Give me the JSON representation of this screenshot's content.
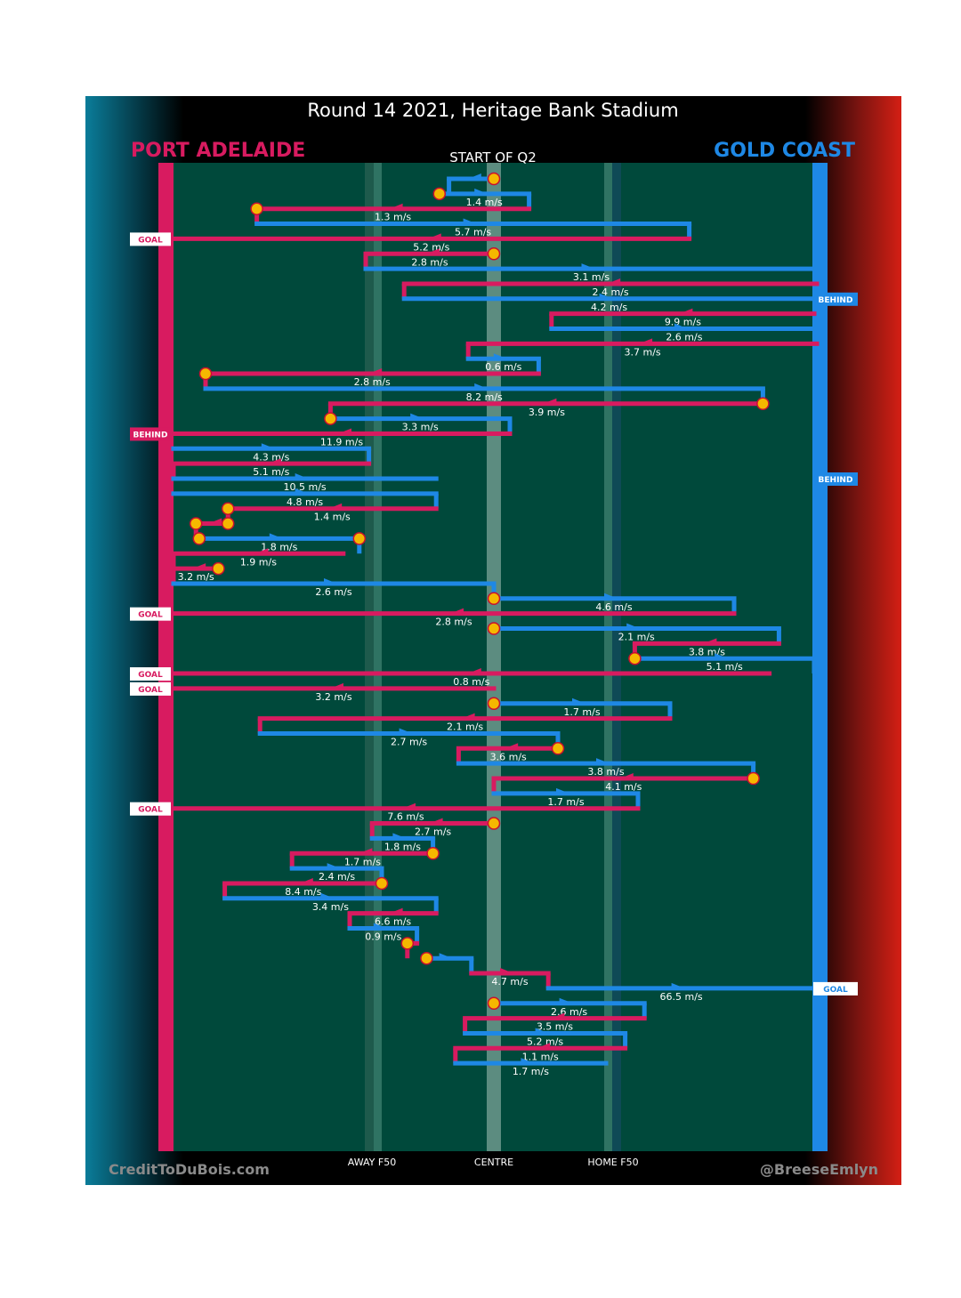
{
  "title": "Round 14 2021, Heritage Bank Stadium",
  "subtitle": "START OF Q2",
  "teams": {
    "left": {
      "name": "PORT ADELAIDE",
      "color": "#d81b60"
    },
    "right": {
      "name": "GOLD COAST",
      "color": "#1e88e5"
    }
  },
  "axis_labels": {
    "away": "AWAY F50",
    "centre": "CENTRE",
    "home": "HOME F50"
  },
  "credits": {
    "left": "CreditToDuBois.com",
    "right": "@BreeseEmlyn"
  },
  "colors": {
    "field": "#00493b",
    "port": "#d81b60",
    "gc": "#1e88e5",
    "stoppage": "#f5b800",
    "left_gradient": "#007a99",
    "right_gradient": "#d41f14",
    "background_band": "#000000"
  },
  "chart_data": {
    "type": "line",
    "title": "Round 14 2021, Heritage Bank Stadium",
    "subtitle": "START OF Q2",
    "x_axis": {
      "description": "field position",
      "min": -1,
      "max": 1,
      "ticks": [
        {
          "value": -0.5,
          "label": "AWAY F50"
        },
        {
          "value": 0,
          "label": "CENTRE"
        },
        {
          "value": 0.5,
          "label": "HOME F50"
        }
      ]
    },
    "y_axis": {
      "description": "chain sequence (time, top to bottom)"
    },
    "legend": "top",
    "series": [
      {
        "name": "PORT ADELAIDE",
        "color": "#d81b60"
      },
      {
        "name": "GOLD COAST",
        "color": "#1e88e5"
      }
    ],
    "chains": [
      {
        "team": "gc",
        "x1": 0.0,
        "x2": -0.14,
        "speed": "",
        "stoppage": "start"
      },
      {
        "team": "gc",
        "x1": -0.17,
        "x2": 0.11,
        "speed": "1.4 m/s",
        "stoppage": "start"
      },
      {
        "team": "port",
        "x1": 0.11,
        "x2": -0.74,
        "speed": "1.3 m/s",
        "stoppage": "end"
      },
      {
        "team": "gc",
        "x1": -0.74,
        "x2": 0.61,
        "speed": "5.7 m/s"
      },
      {
        "team": "port",
        "x1": 0.61,
        "x2": -1.0,
        "speed": "5.2 m/s",
        "result": "GOAL"
      },
      {
        "team": "port",
        "x1": 0.0,
        "x2": -0.4,
        "speed": "2.8 m/s",
        "stoppage": "start"
      },
      {
        "team": "gc",
        "x1": -0.4,
        "x2": 1.03,
        "speed": "3.1 m/s"
      },
      {
        "team": "port",
        "x1": 1.03,
        "x2": -0.28,
        "speed": "2.4 m/s"
      },
      {
        "team": "gc",
        "x1": -0.28,
        "x2": 1.0,
        "speed": "4.2 m/s",
        "result": "BEHIND"
      },
      {
        "team": "port",
        "x1": 1.0,
        "x2": 0.18,
        "speed": "9.9 m/s"
      },
      {
        "team": "gc",
        "x1": 0.18,
        "x2": 1.03,
        "speed": "2.6 m/s"
      },
      {
        "team": "port",
        "x1": 1.03,
        "x2": -0.08,
        "speed": "3.7 m/s"
      },
      {
        "team": "gc",
        "x1": -0.08,
        "x2": 0.14,
        "speed": "0.6 m/s"
      },
      {
        "team": "port",
        "x1": 0.14,
        "x2": -0.9,
        "speed": "2.8 m/s",
        "stoppage": "end"
      },
      {
        "team": "gc",
        "x1": -0.9,
        "x2": 0.84,
        "speed": "8.2 m/s"
      },
      {
        "team": "port",
        "x1": 0.84,
        "x2": -0.51,
        "speed": "3.9 m/s",
        "stoppage": "start"
      },
      {
        "team": "gc",
        "x1": -0.51,
        "x2": 0.05,
        "speed": "3.3 m/s",
        "stoppage": "start"
      },
      {
        "team": "port",
        "x1": 0.05,
        "x2": -1.0,
        "speed": "11.9 m/s",
        "result": "BEHIND"
      },
      {
        "team": "gc",
        "x1": -1.0,
        "x2": -0.39,
        "speed": "4.3 m/s"
      },
      {
        "team": "port",
        "x1": -0.39,
        "x2": -1.0,
        "speed": "5.1 m/s"
      },
      {
        "team": "gc",
        "x1": -1.0,
        "x2": -0.18,
        "speed": "10.5 m/s",
        "result": "BEHIND"
      },
      {
        "team": "gc",
        "x1": -1.0,
        "x2": -0.18,
        "speed": "4.8 m/s"
      },
      {
        "team": "port",
        "x1": -0.18,
        "x2": -0.83,
        "speed": "1.4 m/s",
        "stoppage": "end"
      },
      {
        "team": "port",
        "x1": -0.83,
        "x2": -0.93,
        "speed": "",
        "stoppage": "both"
      },
      {
        "team": "gc",
        "x1": -0.92,
        "x2": -0.42,
        "speed": "1.8 m/s",
        "stoppage": "both"
      },
      {
        "team": "port",
        "x1": -0.47,
        "x2": -1.0,
        "speed": "1.9 m/s"
      },
      {
        "team": "port",
        "x1": -0.86,
        "x2": -1.0,
        "speed": "3.2 m/s",
        "stoppage": "start"
      },
      {
        "team": "gc",
        "x1": -1.0,
        "x2": 0.0,
        "speed": "2.6 m/s"
      },
      {
        "team": "gc",
        "x1": 0.0,
        "x2": 0.75,
        "speed": "4.6 m/s",
        "stoppage": "start"
      },
      {
        "team": "port",
        "x1": 0.75,
        "x2": -1.0,
        "speed": "2.8 m/s",
        "result": "GOAL"
      },
      {
        "team": "gc",
        "x1": 0.0,
        "x2": 0.89,
        "speed": "2.1 m/s",
        "stoppage": "start"
      },
      {
        "team": "port",
        "x1": 0.89,
        "x2": 0.44,
        "speed": "3.8 m/s"
      },
      {
        "team": "gc",
        "x1": 0.44,
        "x2": 1.0,
        "speed": "5.1 m/s",
        "stoppage": "start"
      },
      {
        "team": "port",
        "x1": 0.86,
        "x2": -1.0,
        "speed": "0.8 m/s",
        "result": "GOAL"
      },
      {
        "team": "port",
        "x1": 0.0,
        "x2": -1.0,
        "speed": "3.2 m/s",
        "result": "GOAL"
      },
      {
        "team": "gc",
        "x1": 0.0,
        "x2": 0.55,
        "speed": "1.7 m/s",
        "stoppage": "start"
      },
      {
        "team": "port",
        "x1": 0.55,
        "x2": -0.73,
        "speed": "2.1 m/s"
      },
      {
        "team": "gc",
        "x1": -0.73,
        "x2": 0.2,
        "speed": "2.7 m/s"
      },
      {
        "team": "port",
        "x1": 0.2,
        "x2": -0.11,
        "speed": "3.6 m/s",
        "stoppage": "start"
      },
      {
        "team": "gc",
        "x1": -0.11,
        "x2": 0.81,
        "speed": "3.8 m/s"
      },
      {
        "team": "port",
        "x1": 0.81,
        "x2": 0.0,
        "speed": "4.1 m/s",
        "stoppage": "start"
      },
      {
        "team": "gc",
        "x1": 0.0,
        "x2": 0.45,
        "speed": "1.7 m/s"
      },
      {
        "team": "port",
        "x1": 0.45,
        "x2": -1.0,
        "speed": "7.6 m/s",
        "result": "GOAL"
      },
      {
        "team": "port",
        "x1": 0.0,
        "x2": -0.38,
        "speed": "2.7 m/s",
        "stoppage": "start"
      },
      {
        "team": "gc",
        "x1": -0.38,
        "x2": -0.19,
        "speed": "1.8 m/s"
      },
      {
        "team": "port",
        "x1": -0.19,
        "x2": -0.63,
        "speed": "1.7 m/s",
        "stoppage": "start"
      },
      {
        "team": "gc",
        "x1": -0.63,
        "x2": -0.35,
        "speed": "2.4 m/s"
      },
      {
        "team": "port",
        "x1": -0.35,
        "x2": -0.84,
        "speed": "8.4 m/s",
        "stoppage": "start"
      },
      {
        "team": "gc",
        "x1": -0.84,
        "x2": -0.18,
        "speed": "3.4 m/s"
      },
      {
        "team": "port",
        "x1": -0.18,
        "x2": -0.45,
        "speed": "6.6 m/s"
      },
      {
        "team": "gc",
        "x1": -0.45,
        "x2": -0.24,
        "speed": "0.9 m/s"
      },
      {
        "team": "port",
        "x1": -0.24,
        "x2": -0.27,
        "speed": "",
        "stoppage": "end"
      },
      {
        "team": "gc",
        "x1": -0.21,
        "x2": -0.07,
        "speed": "",
        "stoppage": "start"
      },
      {
        "team": "port",
        "x1": -0.07,
        "x2": 0.17,
        "speed": "4.7 m/s"
      },
      {
        "team": "gc",
        "x1": 0.17,
        "x2": 1.0,
        "speed": "66.5 m/s",
        "result": "GOAL"
      },
      {
        "team": "gc",
        "x1": 0.0,
        "x2": 0.47,
        "speed": "2.6 m/s",
        "stoppage": "start"
      },
      {
        "team": "port",
        "x1": 0.47,
        "x2": -0.09,
        "speed": "3.5 m/s"
      },
      {
        "team": "gc",
        "x1": -0.09,
        "x2": 0.41,
        "speed": "5.2 m/s"
      },
      {
        "team": "port",
        "x1": 0.41,
        "x2": -0.12,
        "speed": "1.1 m/s"
      },
      {
        "team": "gc",
        "x1": -0.12,
        "x2": 0.35,
        "speed": "1.7 m/s"
      }
    ]
  }
}
